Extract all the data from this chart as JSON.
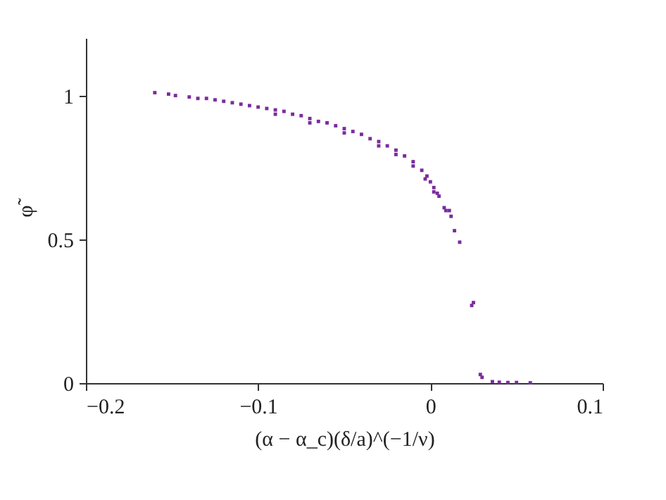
{
  "chart_data": {
    "type": "scatter",
    "xlabel": "(α − α_c)(δ/a)^(−1/ν)",
    "ylabel": "φ̃",
    "xlim": [
      -0.2,
      0.1
    ],
    "xticks": [
      -0.2,
      -0.1,
      0,
      0.1
    ],
    "ylim": [
      0,
      1.2
    ],
    "yticks": [
      0,
      0.5,
      1
    ],
    "grid": false,
    "marker": "square",
    "series": [
      {
        "color": "#7b2c9e",
        "x": [
          -0.16,
          -0.152,
          -0.148,
          -0.14,
          -0.135,
          -0.13,
          -0.125,
          -0.12,
          -0.115,
          -0.11,
          -0.105,
          -0.1,
          -0.095,
          -0.09,
          -0.085,
          -0.08,
          -0.075,
          -0.07,
          -0.065,
          -0.06,
          -0.055,
          -0.05,
          -0.045,
          -0.04,
          -0.035,
          -0.03,
          -0.025,
          -0.02,
          -0.015,
          -0.01,
          -0.005,
          -0.002,
          0,
          0.002,
          0.004,
          0.005,
          -0.09,
          -0.07,
          -0.05,
          -0.03,
          -0.02,
          -0.01,
          -0.003,
          0.002,
          0.008,
          0.009,
          0.011,
          0.012,
          0.014,
          0.017,
          0.024,
          0.025,
          0.029,
          0.03,
          0.036,
          0.04,
          0.045,
          0.05,
          0.058
        ],
        "values": [
          1.01,
          1.005,
          1.0,
          0.995,
          0.99,
          0.99,
          0.985,
          0.98,
          0.975,
          0.97,
          0.965,
          0.96,
          0.955,
          0.95,
          0.945,
          0.935,
          0.93,
          0.92,
          0.91,
          0.905,
          0.895,
          0.885,
          0.875,
          0.865,
          0.85,
          0.84,
          0.825,
          0.81,
          0.79,
          0.77,
          0.74,
          0.72,
          0.7,
          0.68,
          0.66,
          0.65,
          0.935,
          0.905,
          0.87,
          0.825,
          0.795,
          0.755,
          0.71,
          0.665,
          0.61,
          0.6,
          0.6,
          0.58,
          0.53,
          0.49,
          0.27,
          0.28,
          0.03,
          0.02,
          0.005,
          0.003,
          0.002,
          0.002,
          0.001
        ]
      }
    ]
  }
}
